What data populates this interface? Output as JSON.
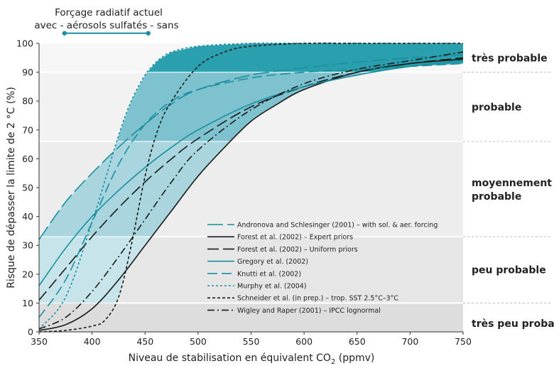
{
  "chart_data": {
    "type": "line",
    "xlabel_pre": "Niveau de stabilisation en équivalent CO",
    "xlabel_sub": "2",
    "xlabel_post": " (ppmv)",
    "ylabel": "Risque de dépasser la limite de 2 °C (%)",
    "xlim": [
      350,
      750
    ],
    "ylim": [
      0,
      100
    ],
    "xticks": [
      "350",
      "400",
      "450",
      "500",
      "550",
      "600",
      "650",
      "700",
      "750"
    ],
    "yticks": [
      "0",
      "10",
      "20",
      "30",
      "40",
      "50",
      "60",
      "70",
      "80",
      "90",
      "100"
    ],
    "forcing": {
      "line1": "Forçage radiatif actuel",
      "line2": "avec - aérosols sulfatés - sans",
      "x_range": [
        374,
        453
      ],
      "y_value": 103.5
    },
    "likelihood_bands": [
      {
        "label": "très probable",
        "range": [
          90,
          100
        ]
      },
      {
        "label": "probable",
        "range": [
          66,
          90
        ]
      },
      {
        "label": "moyennement",
        "label2": "probable",
        "range": [
          33,
          66
        ]
      },
      {
        "label": "peu probable",
        "range": [
          10,
          33
        ]
      },
      {
        "label": "très peu probable",
        "range": [
          0,
          10
        ]
      }
    ],
    "series": [
      {
        "name": "Andronova and Schlesinger (2001) – with sol. & aer. forcing",
        "color": "#1a8fa0",
        "dash": "22,6",
        "x": [
          350,
          375,
          400,
          425,
          450,
          475,
          500,
          550,
          600,
          650,
          700,
          750
        ],
        "y": [
          32,
          45,
          55,
          64,
          72,
          79,
          84,
          89,
          91.5,
          93.5,
          95,
          96
        ]
      },
      {
        "name": "Forest et al. (2002) – Expert priors",
        "color": "#1a1a1a",
        "dash": "",
        "x": [
          350,
          375,
          400,
          425,
          450,
          475,
          500,
          525,
          550,
          575,
          600,
          650,
          700,
          750
        ],
        "y": [
          0.5,
          2.5,
          8,
          18,
          30,
          42,
          54,
          64,
          73,
          79,
          84,
          90,
          93,
          94.5
        ]
      },
      {
        "name": "Forest et al. (2002) – Uniform priors",
        "color": "#1a1a1a",
        "dash": "16,6",
        "x": [
          350,
          375,
          400,
          425,
          450,
          475,
          500,
          550,
          600,
          650,
          700,
          750
        ],
        "y": [
          11,
          22,
          33,
          43,
          52,
          60,
          67,
          78,
          85,
          90,
          93,
          95
        ]
      },
      {
        "name": "Gregory et al. (2002)",
        "color": "#1a8fa0",
        "dash": "",
        "x": [
          350,
          375,
          400,
          425,
          450,
          475,
          500,
          550,
          600,
          650,
          700,
          750
        ],
        "y": [
          16,
          29,
          40,
          49,
          57,
          64,
          70,
          79,
          85,
          89,
          92,
          94
        ]
      },
      {
        "name": "Knutti et al. (2002)",
        "color": "#1a8fa0",
        "dash": "14,6",
        "x": [
          350,
          375,
          400,
          425,
          450,
          475,
          500,
          550,
          600,
          650,
          700,
          750
        ],
        "y": [
          5,
          18,
          38,
          58,
          72,
          80,
          84,
          88,
          90,
          91,
          92,
          93
        ]
      },
      {
        "name": "Murphy et al. (2004)",
        "color": "#1a8fa0",
        "dash": "3,3",
        "x": [
          350,
          375,
          400,
          425,
          437,
          450,
          462,
          475,
          500,
          550,
          600,
          650,
          700,
          750
        ],
        "y": [
          1,
          12,
          38,
          68,
          80,
          89,
          94,
          97,
          99,
          100,
          100,
          100,
          100,
          100
        ]
      },
      {
        "name": "Schneider et al. (in prep.) – trop. SST 2.5°C–3°C",
        "color": "#1a1a1a",
        "dash": "4,3",
        "x": [
          350,
          375,
          400,
          412,
          425,
          437,
          450,
          462,
          475,
          500,
          525,
          550,
          600,
          650,
          700,
          750
        ],
        "y": [
          0,
          0.5,
          2,
          4,
          12,
          30,
          54,
          70,
          80,
          92,
          97,
          99,
          100,
          100,
          100,
          100
        ]
      },
      {
        "name": "Wigley and Raper (2001) – IPCC lognormal",
        "color": "#1a1a1a",
        "dash": "10,4,2,4",
        "x": [
          350,
          375,
          400,
          425,
          450,
          475,
          500,
          550,
          600,
          650,
          700,
          750
        ],
        "y": [
          1,
          5,
          14,
          26,
          39,
          52,
          63,
          77,
          86,
          91,
          94,
          97
        ]
      }
    ]
  }
}
